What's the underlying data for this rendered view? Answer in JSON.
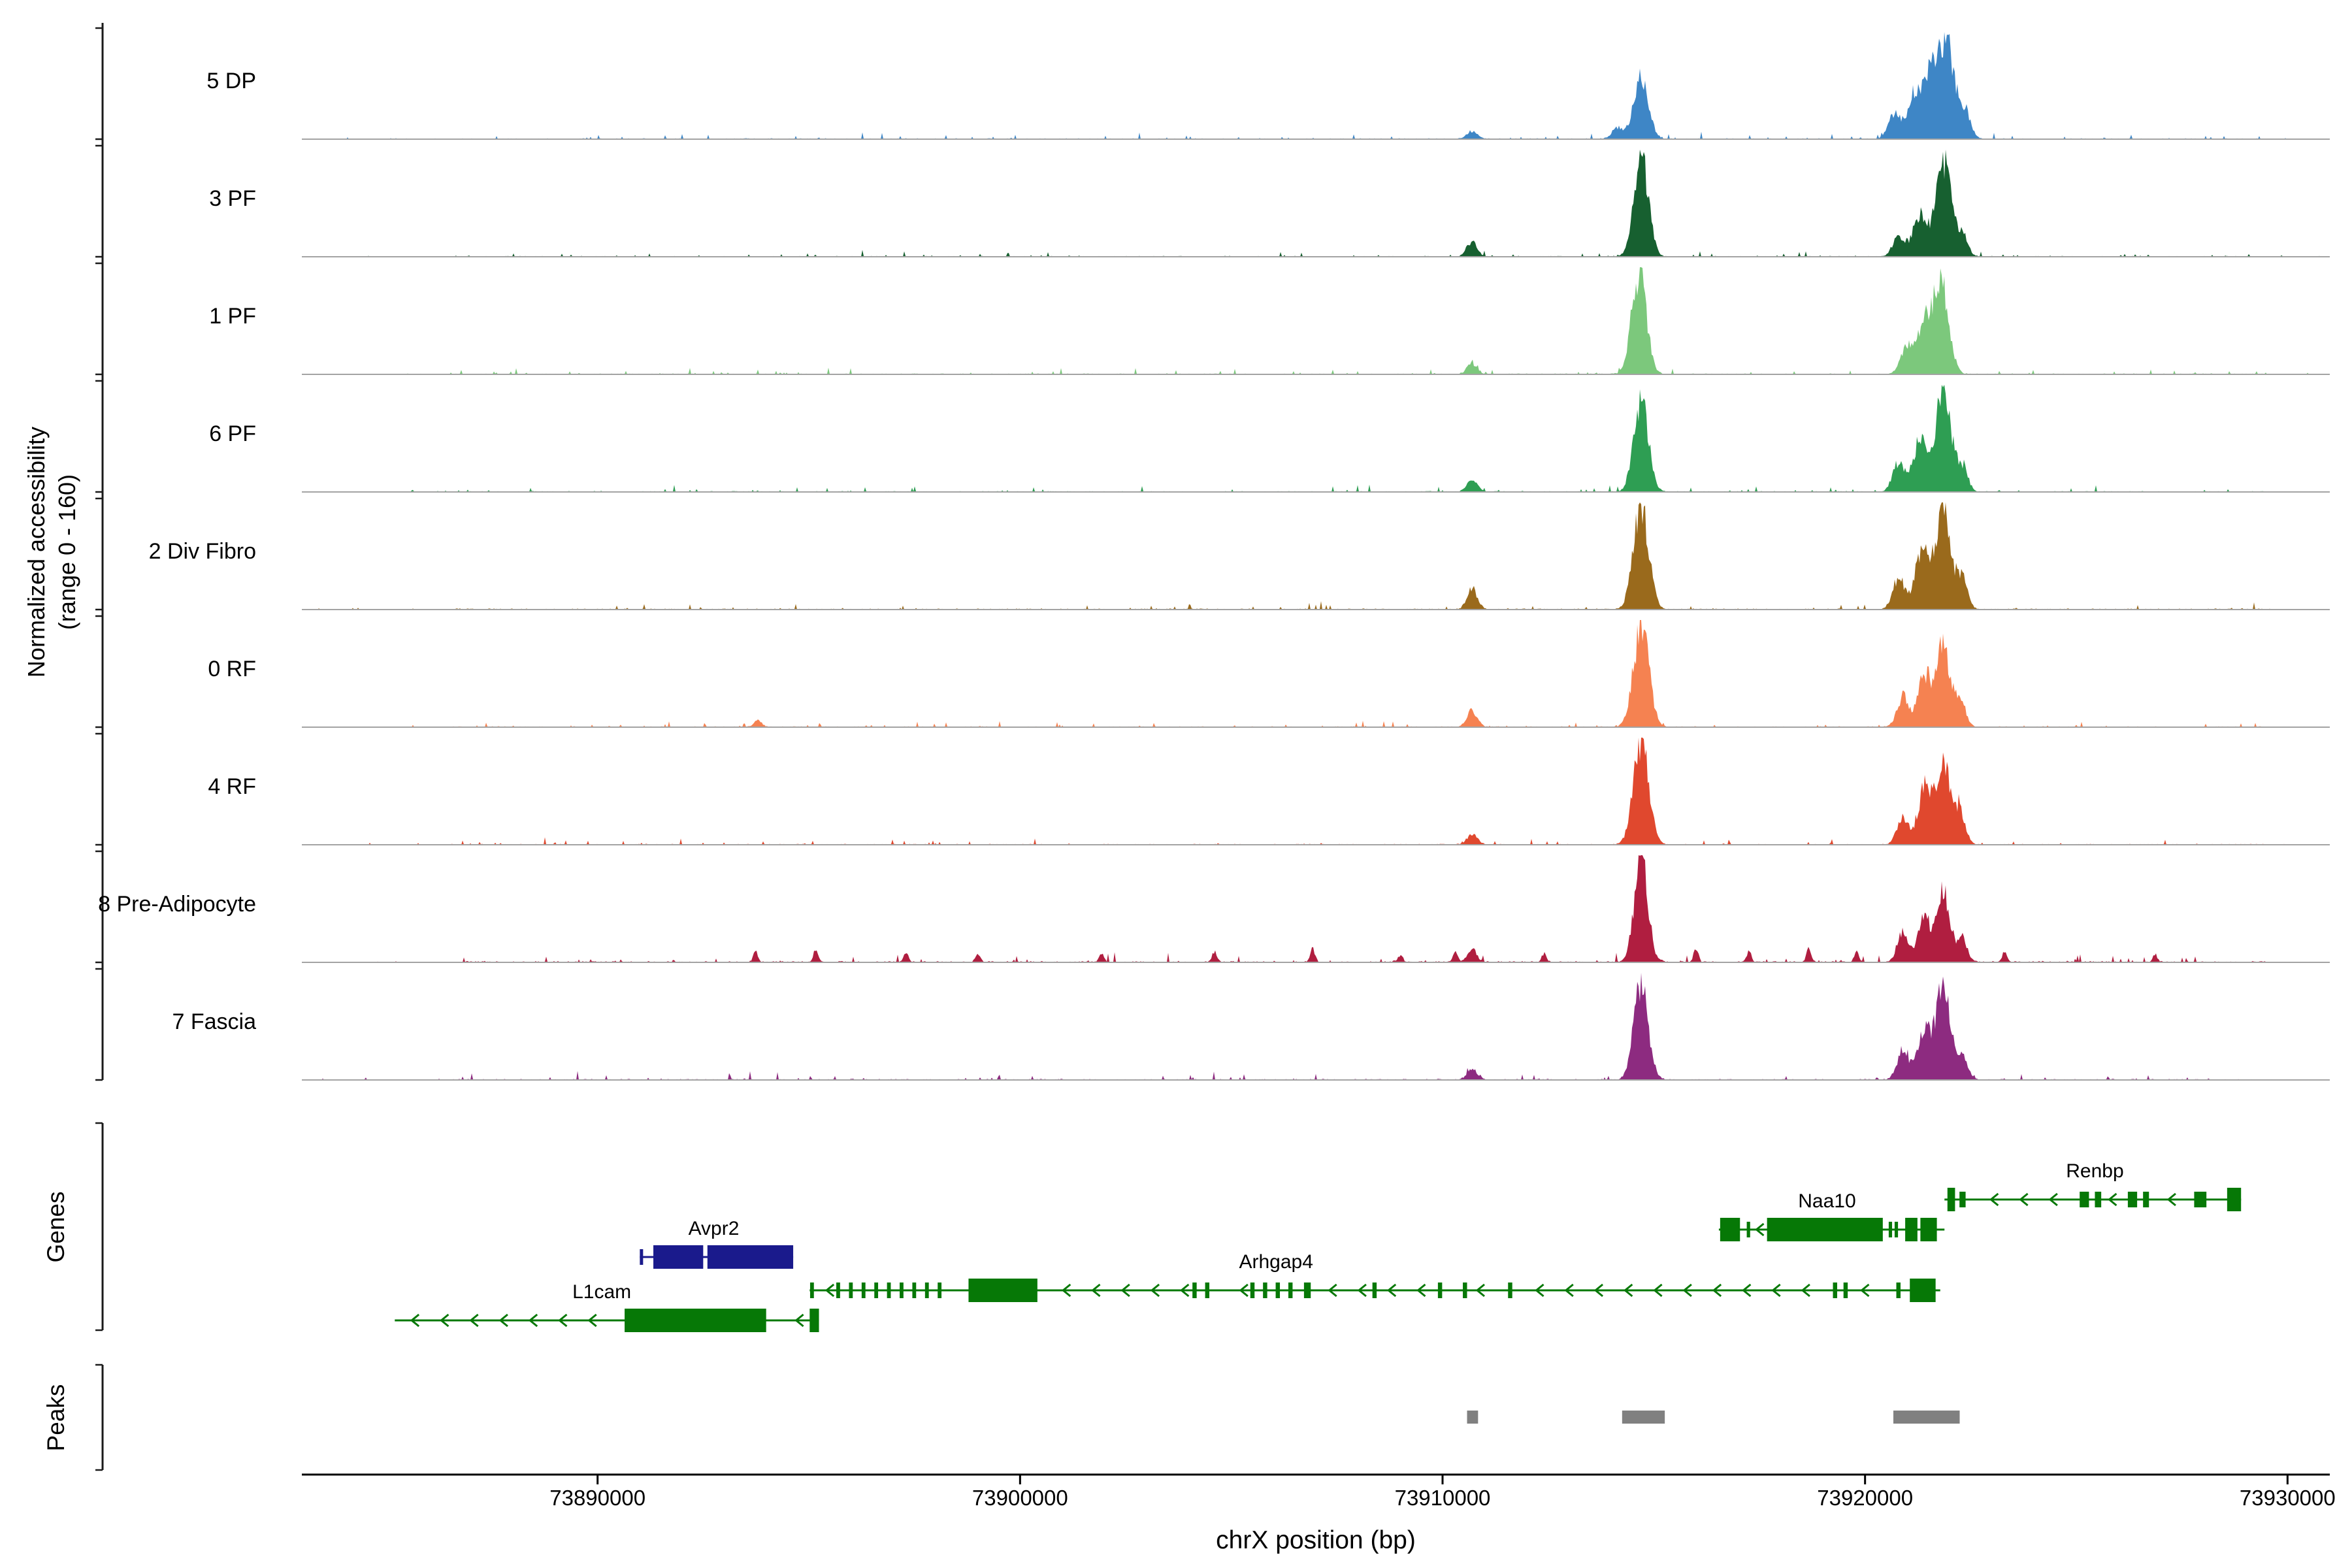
{
  "figure": {
    "y_axis_label_line1": "Normalized accessibility",
    "y_axis_label_line2": "(range 0 - 160)",
    "genes_section_label": "Genes",
    "peaks_section_label": "Peaks",
    "x_axis_label": "chrX position (bp)"
  },
  "chart_data": {
    "type": "area",
    "subtype": "genome-coverage-tracks",
    "title": "",
    "xlabel": "chrX position (bp)",
    "ylabel": "Normalized accessibility (range 0 - 160)",
    "x_range_bp": [
      73883000,
      73931000
    ],
    "per_track_y_range": [
      0,
      160
    ],
    "x_ticks": [
      {
        "bp": 73890000,
        "label": "73890000"
      },
      {
        "bp": 73900000,
        "label": "73900000"
      },
      {
        "bp": 73910000,
        "label": "73910000"
      },
      {
        "bp": 73920000,
        "label": "73920000"
      },
      {
        "bp": 73930000,
        "label": "73930000"
      }
    ],
    "tracks": [
      {
        "name": "5 DP",
        "color": "#3E86C6",
        "seed": 11,
        "noise": 0.035,
        "peaks": [
          [
            73910700,
            0.07,
            130
          ],
          [
            73914150,
            0.1,
            140
          ],
          [
            73914700,
            0.6,
            170
          ],
          [
            73920700,
            0.22,
            150
          ],
          [
            73921150,
            0.38,
            160
          ],
          [
            73921500,
            0.5,
            160
          ],
          [
            73921900,
            0.95,
            190
          ],
          [
            73922350,
            0.26,
            140
          ]
        ]
      },
      {
        "name": "3 PF",
        "color": "#176030",
        "seed": 22,
        "noise": 0.03,
        "peaks": [
          [
            73910700,
            0.14,
            120
          ],
          [
            73914700,
            0.95,
            170
          ],
          [
            73920800,
            0.2,
            140
          ],
          [
            73921300,
            0.4,
            160
          ],
          [
            73921850,
            0.9,
            180
          ],
          [
            73922300,
            0.2,
            130
          ]
        ]
      },
      {
        "name": "1 PF",
        "color": "#7CC87C",
        "seed": 33,
        "noise": 0.035,
        "peaks": [
          [
            73910700,
            0.1,
            120
          ],
          [
            73914650,
            0.95,
            175
          ],
          [
            73921000,
            0.28,
            150
          ],
          [
            73921400,
            0.45,
            160
          ],
          [
            73921800,
            0.85,
            180
          ]
        ]
      },
      {
        "name": "6 PF",
        "color": "#2E9E53",
        "seed": 44,
        "noise": 0.035,
        "peaks": [
          [
            73910700,
            0.12,
            120
          ],
          [
            73914700,
            0.88,
            170
          ],
          [
            73920800,
            0.28,
            140
          ],
          [
            73921300,
            0.48,
            160
          ],
          [
            73921850,
            0.93,
            180
          ],
          [
            73922300,
            0.24,
            130
          ]
        ]
      },
      {
        "name": "2 Div Fibro",
        "color": "#9A6A1C",
        "seed": 55,
        "noise": 0.04,
        "peaks": [
          [
            73910700,
            0.2,
            120
          ],
          [
            73914700,
            0.95,
            180
          ],
          [
            73920800,
            0.3,
            140
          ],
          [
            73921350,
            0.55,
            160
          ],
          [
            73921850,
            0.92,
            180
          ],
          [
            73922300,
            0.28,
            130
          ]
        ]
      },
      {
        "name": "0 RF",
        "color": "#F58251",
        "seed": 66,
        "noise": 0.035,
        "peaks": [
          [
            73893800,
            0.06,
            90
          ],
          [
            73910700,
            0.15,
            120
          ],
          [
            73914700,
            0.95,
            180
          ],
          [
            73920900,
            0.28,
            140
          ],
          [
            73921400,
            0.48,
            150
          ],
          [
            73921850,
            0.75,
            170
          ],
          [
            73922250,
            0.22,
            130
          ]
        ]
      },
      {
        "name": "4 RF",
        "color": "#E0482E",
        "seed": 77,
        "noise": 0.035,
        "peaks": [
          [
            73910700,
            0.1,
            120
          ],
          [
            73914700,
            0.95,
            180
          ],
          [
            73920900,
            0.26,
            140
          ],
          [
            73921400,
            0.52,
            150
          ],
          [
            73921850,
            0.78,
            170
          ],
          [
            73922250,
            0.28,
            130
          ]
        ]
      },
      {
        "name": "8 Pre-Adipocyte",
        "color": "#B01E40",
        "seed": 88,
        "noise": 0.05,
        "peaks": [
          [
            73910700,
            0.12,
            110
          ],
          [
            73914700,
            0.95,
            160
          ],
          [
            73920900,
            0.28,
            130
          ],
          [
            73921400,
            0.42,
            140
          ],
          [
            73921850,
            0.65,
            160
          ],
          [
            73922300,
            0.22,
            120
          ],
          [
            73893740,
            0.1,
            55
          ],
          [
            73895165,
            0.12,
            55
          ],
          [
            73897300,
            0.09,
            55
          ],
          [
            73899000,
            0.07,
            55
          ],
          [
            73901930,
            0.08,
            55
          ],
          [
            73904600,
            0.1,
            55
          ],
          [
            73906920,
            0.12,
            55
          ],
          [
            73909000,
            0.07,
            55
          ],
          [
            73910300,
            0.09,
            55
          ],
          [
            73912400,
            0.08,
            55
          ],
          [
            73916000,
            0.12,
            55
          ],
          [
            73917250,
            0.1,
            55
          ],
          [
            73918670,
            0.12,
            55
          ],
          [
            73919800,
            0.09,
            55
          ],
          [
            73923300,
            0.1,
            55
          ],
          [
            73926870,
            0.07,
            55
          ]
        ]
      },
      {
        "name": "7 Fascia",
        "color": "#8D2B80",
        "seed": 99,
        "noise": 0.04,
        "peaks": [
          [
            73910700,
            0.1,
            120
          ],
          [
            73914700,
            0.88,
            170
          ],
          [
            73920900,
            0.28,
            140
          ],
          [
            73921400,
            0.48,
            150
          ],
          [
            73921850,
            0.84,
            175
          ],
          [
            73922300,
            0.22,
            130
          ]
        ]
      }
    ],
    "genes": [
      {
        "name": "Renbp",
        "color": "#067806",
        "row": 0,
        "start": 73921880,
        "end": 73928900,
        "strand": "-",
        "label_pos": 73925440,
        "exons": [
          [
            73921950,
            73922130,
            1
          ],
          [
            73922235,
            73922380
          ],
          [
            73925080,
            73925300
          ],
          [
            73925440,
            73925590
          ],
          [
            73926220,
            73926440
          ],
          [
            73926580,
            73926720
          ],
          [
            73927790,
            73928080
          ],
          [
            73928570,
            73928900,
            1
          ]
        ]
      },
      {
        "name": "Naa10",
        "color": "#067806",
        "row": 1,
        "start": 73916540,
        "end": 73921880,
        "strand": "-",
        "label_pos": 73919100,
        "arrows": [
          73917430
        ],
        "exons": [
          [
            73916570,
            73917040,
            1
          ],
          [
            73917200,
            73917280
          ],
          [
            73917680,
            73920420,
            1
          ],
          [
            73920560,
            73920640
          ],
          [
            73920700,
            73920780
          ],
          [
            73920950,
            73921240,
            1
          ],
          [
            73921310,
            73921700,
            1
          ]
        ]
      },
      {
        "name": "Avpr2",
        "color": "#1A1A8C",
        "row": 2,
        "start": 73891000,
        "end": 73894630,
        "strand": "+",
        "label_pos": 73892750,
        "arrows": [],
        "exons": [
          [
            73891000,
            73891070
          ],
          [
            73891320,
            73892500,
            1
          ],
          [
            73892600,
            73894630,
            1
          ]
        ]
      },
      {
        "name": "Arhgap4",
        "color": "#067806",
        "row": 3,
        "start": 73895020,
        "end": 73921780,
        "strand": "-",
        "label_pos": 73906060,
        "exons": [
          [
            73895030,
            73895120
          ],
          [
            73895650,
            73895740
          ],
          [
            73895950,
            73896040
          ],
          [
            73896250,
            73896340
          ],
          [
            73896550,
            73896640
          ],
          [
            73896850,
            73896940
          ],
          [
            73897150,
            73897240
          ],
          [
            73897450,
            73897540
          ],
          [
            73897750,
            73897840
          ],
          [
            73898050,
            73898140
          ],
          [
            73898780,
            73900410,
            1
          ],
          [
            73904080,
            73904180
          ],
          [
            73904380,
            73904480
          ],
          [
            73905450,
            73905550
          ],
          [
            73905750,
            73905850
          ],
          [
            73906050,
            73906150
          ],
          [
            73906350,
            73906450
          ],
          [
            73906720,
            73906880
          ],
          [
            73908340,
            73908440
          ],
          [
            73909890,
            73909990
          ],
          [
            73910480,
            73910580
          ],
          [
            73911550,
            73911650
          ],
          [
            73919240,
            73919340
          ],
          [
            73919490,
            73919590
          ],
          [
            73920740,
            73920840
          ],
          [
            73921060,
            73921670,
            1
          ]
        ]
      },
      {
        "name": "L1cam",
        "color": "#067806",
        "row": 4,
        "start": 73885200,
        "end": 73895240,
        "strand": "-",
        "label_pos": 73890100,
        "exons": [
          [
            73890640,
            73893990,
            1
          ],
          [
            73895020,
            73895240,
            1
          ]
        ]
      }
    ],
    "peak_regions": [
      [
        73910580,
        73910840
      ],
      [
        73914250,
        73915260
      ],
      [
        73920670,
        73922240
      ]
    ],
    "peak_color": "#808080",
    "grid": false,
    "legend": "none"
  }
}
